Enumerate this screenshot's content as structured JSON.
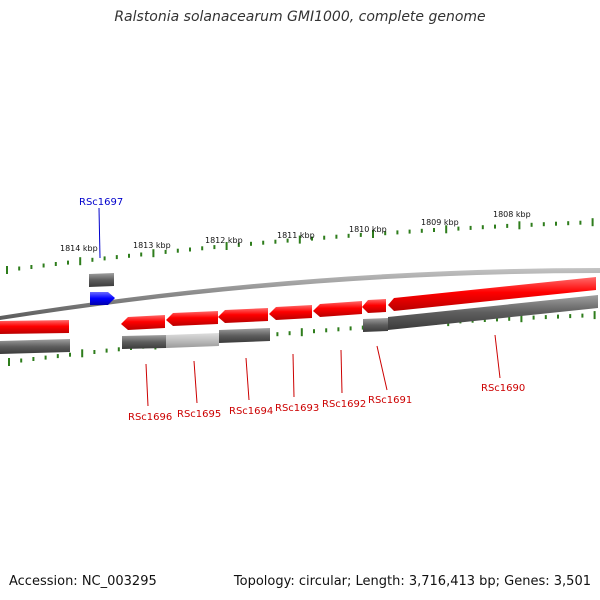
{
  "title": "Ralstonia solanacearum GMI1000, complete genome",
  "footer": {
    "accession": "Accession: NC_003295",
    "topology": "Topology: circular; Length: 3,716,413 bp; Genes: 3,501"
  },
  "colors": {
    "forward_gene": "#ff0000",
    "cds": "#606060",
    "cds_light": "#bbbbbb",
    "highlight_gene": "#0000ff",
    "tick": "#2e7d1c",
    "backbone": "#8c8c8c",
    "forward_label": "#0000cc",
    "reverse_label": "#cc0000"
  },
  "scale": {
    "unit": "kbp",
    "ticks": [
      {
        "label": "1814 kbp"
      },
      {
        "label": "1813 kbp"
      },
      {
        "label": "1812 kbp"
      },
      {
        "label": "1811 kbp"
      },
      {
        "label": "1810 kbp"
      },
      {
        "label": "1809 kbp"
      },
      {
        "label": "1808 kbp"
      }
    ]
  },
  "genes": [
    {
      "name": "RSc1697",
      "strand": "forward",
      "highlighted": true
    },
    {
      "name": "RSc1696",
      "strand": "reverse"
    },
    {
      "name": "RSc1695",
      "strand": "reverse"
    },
    {
      "name": "RSc1694",
      "strand": "reverse"
    },
    {
      "name": "RSc1693",
      "strand": "reverse"
    },
    {
      "name": "RSc1692",
      "strand": "reverse"
    },
    {
      "name": "RSc1691",
      "strand": "reverse"
    },
    {
      "name": "RSc1690",
      "strand": "reverse"
    }
  ]
}
